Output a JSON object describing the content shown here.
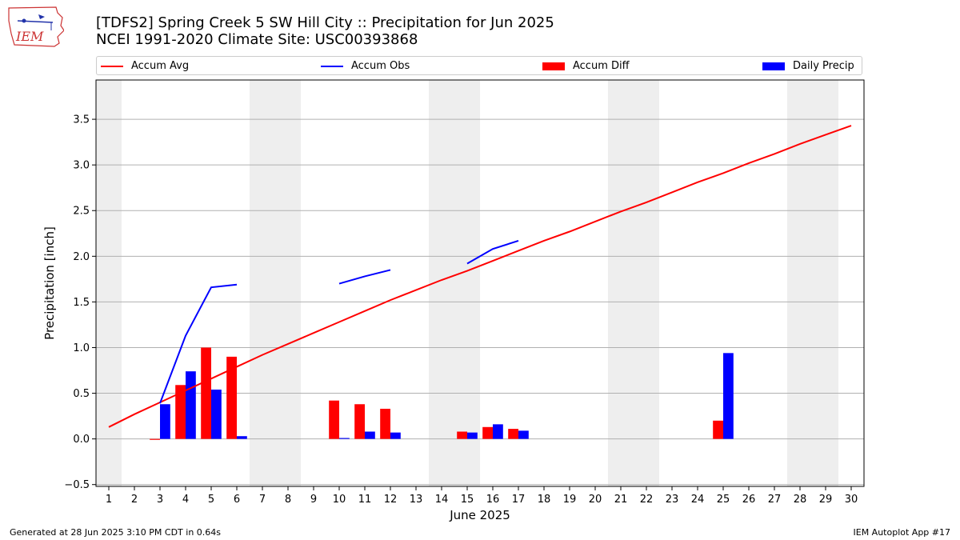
{
  "logo": {
    "text": "IEM",
    "icon": "iowa-state-outline-logo"
  },
  "title": {
    "line1": "[TDFS2] Spring Creek 5 SW Hill City :: Precipitation for Jun 2025",
    "line2": "NCEI 1991-2020 Climate Site: USC00393868"
  },
  "legend": {
    "accum_avg": "Accum Avg",
    "accum_obs": "Accum Obs",
    "accum_diff": "Accum Diff",
    "daily_precip": "Daily Precip"
  },
  "colors": {
    "avg": "#ff0000",
    "obs": "#0000ff",
    "diff": "#ff0000",
    "daily": "#0000ff",
    "weekend": "#eeeeee",
    "grid": "#b0b0b0"
  },
  "footer": {
    "generated": "Generated at 28 Jun 2025 3:10 PM CDT in 0.64s",
    "app": "IEM Autoplot App #17"
  },
  "chart_data": {
    "type": "bar",
    "xlabel": "June 2025",
    "ylabel": "Precipitation [inch]",
    "xlim": [
      0.5,
      30.5
    ],
    "ylim": [
      -0.52,
      3.93
    ],
    "yticks": [
      -0.5,
      0.0,
      0.5,
      1.0,
      1.5,
      2.0,
      2.5,
      3.0,
      3.5
    ],
    "ytick_labels": [
      "−0.5",
      "0.0",
      "0.5",
      "1.0",
      "1.5",
      "2.0",
      "2.5",
      "3.0",
      "3.5"
    ],
    "days": [
      1,
      2,
      3,
      4,
      5,
      6,
      7,
      8,
      9,
      10,
      11,
      12,
      13,
      14,
      15,
      16,
      17,
      18,
      19,
      20,
      21,
      22,
      23,
      24,
      25,
      26,
      27,
      28,
      29,
      30
    ],
    "weekend_bands": [
      [
        0.5,
        1.5
      ],
      [
        6.5,
        8.5
      ],
      [
        13.5,
        15.5
      ],
      [
        20.5,
        22.5
      ],
      [
        27.5,
        29.5
      ]
    ],
    "grid": true,
    "series": [
      {
        "name": "Accum Avg",
        "kind": "line",
        "values": [
          0.13,
          0.27,
          0.4,
          0.53,
          0.66,
          0.79,
          0.92,
          1.04,
          1.16,
          1.28,
          1.4,
          1.52,
          1.63,
          1.74,
          1.84,
          1.95,
          2.06,
          2.17,
          2.27,
          2.38,
          2.49,
          2.59,
          2.7,
          2.81,
          2.91,
          3.02,
          3.12,
          3.23,
          3.33,
          3.43
        ]
      },
      {
        "name": "Accum Obs",
        "kind": "line",
        "values": [
          null,
          null,
          0.39,
          1.13,
          1.66,
          1.69,
          null,
          null,
          null,
          1.7,
          1.78,
          1.85,
          null,
          null,
          1.92,
          2.08,
          2.17,
          null,
          null,
          null,
          null,
          null,
          null,
          null,
          null,
          null,
          null,
          null,
          null,
          null
        ]
      },
      {
        "name": "Accum Diff",
        "kind": "bar",
        "values": [
          null,
          null,
          -0.01,
          0.59,
          1.0,
          0.9,
          null,
          null,
          null,
          0.42,
          0.38,
          0.33,
          null,
          null,
          0.08,
          0.13,
          0.11,
          null,
          null,
          null,
          null,
          null,
          null,
          null,
          0.2,
          null,
          null,
          null,
          null,
          null
        ]
      },
      {
        "name": "Daily Precip",
        "kind": "bar",
        "values": [
          null,
          null,
          0.38,
          0.74,
          0.54,
          0.03,
          null,
          null,
          null,
          0.01,
          0.08,
          0.07,
          null,
          null,
          0.07,
          0.16,
          0.09,
          null,
          null,
          null,
          null,
          null,
          null,
          null,
          0.94,
          null,
          null,
          null,
          null,
          null
        ]
      }
    ]
  }
}
